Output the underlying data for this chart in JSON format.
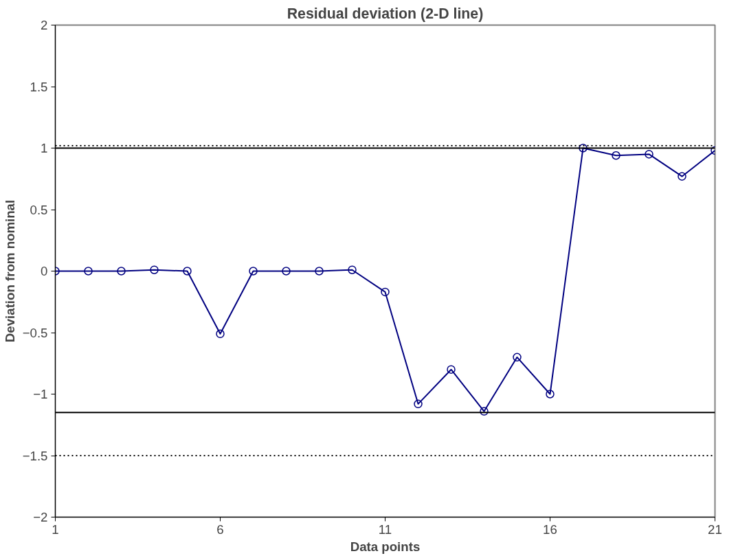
{
  "chart_data": {
    "type": "line",
    "title": "Residual deviation (2-D line)",
    "xlabel": "Data points",
    "ylabel": "Deviation from nominal",
    "x": [
      1,
      2,
      3,
      4,
      5,
      6,
      7,
      8,
      9,
      10,
      11,
      12,
      13,
      14,
      15,
      16,
      17,
      18,
      19,
      20,
      21
    ],
    "series": [
      {
        "color": "#000080",
        "values": [
          0,
          0,
          0,
          0.01,
          0,
          -0.51,
          0,
          0,
          0,
          0.01,
          -0.17,
          -1.08,
          -0.8,
          -1.14,
          -0.7,
          -1,
          1,
          0.94,
          0.95,
          0.77,
          0.98
        ]
      }
    ],
    "xlim": [
      1,
      21
    ],
    "xticks": [
      1,
      6,
      11,
      16,
      21
    ],
    "ylim": [
      -2,
      2
    ],
    "yticks": [
      -2,
      -1.5,
      -1,
      -0.5,
      0,
      0.5,
      1,
      1.5,
      2
    ],
    "grid": false,
    "marker": "circle",
    "line_style": "solid",
    "ref_lines": [
      {
        "axis": "y",
        "value": 1.02,
        "color": "#000000",
        "line_style": "dotted"
      },
      {
        "axis": "y",
        "value": 1,
        "color": "#000000",
        "line_style": "solid"
      },
      {
        "axis": "y",
        "value": -1.15,
        "color": "#000000",
        "line_style": "solid"
      },
      {
        "axis": "y",
        "value": -1.5,
        "color": "#000000",
        "line_style": "dotted"
      }
    ]
  }
}
